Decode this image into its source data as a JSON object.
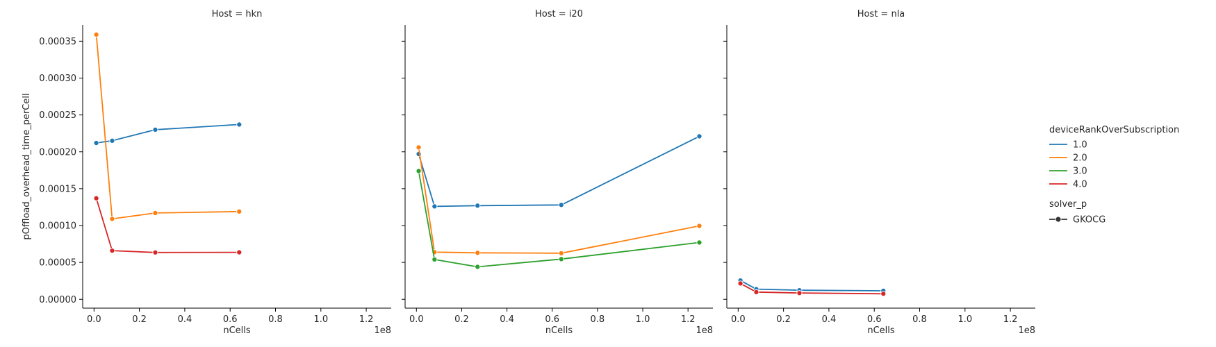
{
  "chart_data": {
    "type": "line",
    "facet_label_prefix": "Host = ",
    "xlabel": "nCells",
    "ylabel": "pOffload_overhead_time_perCell",
    "x_offset_label": "1e8",
    "xlim": [
      -0.05,
      1.31
    ],
    "ylim": [
      -1.2e-05,
      0.000372
    ],
    "x_ticks": [
      0.0,
      0.2,
      0.4,
      0.6,
      0.8,
      1.0,
      1.2
    ],
    "x_tick_labels": [
      "0.0",
      "0.2",
      "0.4",
      "0.6",
      "0.8",
      "1.0",
      "1.2"
    ],
    "y_ticks": [
      0,
      5e-05,
      0.0001,
      0.00015,
      0.0002,
      0.00025,
      0.0003,
      0.00035
    ],
    "y_tick_labels": [
      "0.00000",
      "0.00005",
      "0.00010",
      "0.00015",
      "0.00020",
      "0.00025",
      "0.00030",
      "0.00035"
    ],
    "legend": {
      "placement": "right",
      "hue_title": "deviceRankOverSubscription",
      "style_title": "solver_p",
      "hue_entries": [
        {
          "label": "1.0",
          "color": "#1f77b4"
        },
        {
          "label": "2.0",
          "color": "#ff7f0e"
        },
        {
          "label": "3.0",
          "color": "#2ca02c"
        },
        {
          "label": "4.0",
          "color": "#d62728"
        }
      ],
      "style_entries": [
        {
          "label": "GKOCG",
          "marker": "circle"
        }
      ]
    },
    "facets": [
      {
        "host": "hkn",
        "series": [
          {
            "name": "1.0",
            "x": [
              0.01,
              0.08,
              0.27,
              0.64
            ],
            "y": [
              0.000212,
              0.000215,
              0.00023,
              0.000237
            ]
          },
          {
            "name": "2.0",
            "x": [
              0.01,
              0.08,
              0.27,
              0.64
            ],
            "y": [
              0.000359,
              0.000109,
              0.000117,
              0.000119
            ]
          },
          {
            "name": "4.0",
            "x": [
              0.01,
              0.08,
              0.27,
              0.64
            ],
            "y": [
              0.000137,
              6.6e-05,
              6.35e-05,
              6.37e-05
            ]
          }
        ]
      },
      {
        "host": "i20",
        "series": [
          {
            "name": "1.0",
            "x": [
              0.01,
              0.08,
              0.27,
              0.64,
              1.25
            ],
            "y": [
              0.000197,
              0.000126,
              0.000127,
              0.000128,
              0.000221
            ]
          },
          {
            "name": "2.0",
            "x": [
              0.01,
              0.08,
              0.27,
              0.64,
              1.25
            ],
            "y": [
              0.000206,
              6.4e-05,
              6.3e-05,
              6.25e-05,
              9.95e-05
            ]
          },
          {
            "name": "3.0",
            "x": [
              0.01,
              0.08,
              0.27,
              0.64,
              1.25
            ],
            "y": [
              0.000174,
              5.4e-05,
              4.4e-05,
              5.45e-05,
              7.7e-05
            ]
          }
        ]
      },
      {
        "host": "nla",
        "series": [
          {
            "name": "1.0",
            "x": [
              0.01,
              0.08,
              0.27,
              0.64
            ],
            "y": [
              2.55e-05,
              1.38e-05,
              1.23e-05,
              1.15e-05
            ]
          },
          {
            "name": "4.0",
            "x": [
              0.01,
              0.08,
              0.27,
              0.64
            ],
            "y": [
              2.15e-05,
              9.8e-06,
              8.5e-06,
              7.5e-06
            ]
          }
        ]
      }
    ]
  }
}
